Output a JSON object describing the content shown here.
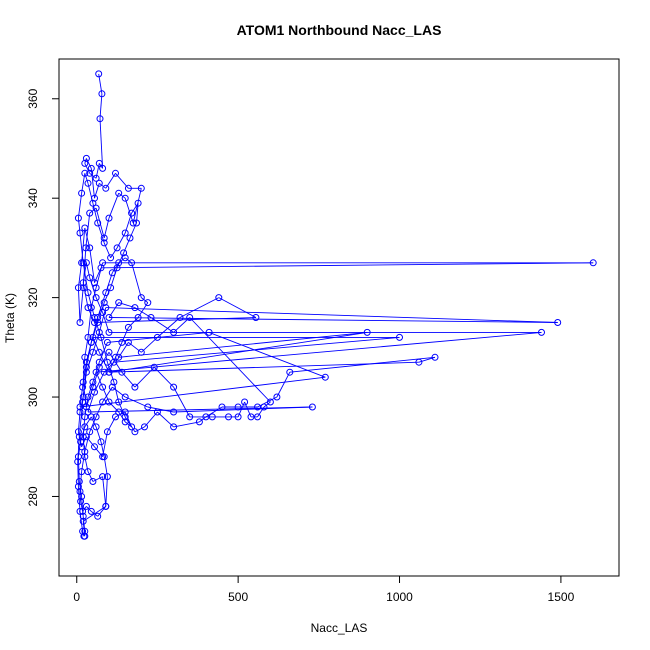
{
  "chart_data": {
    "type": "scatter",
    "title": "ATOM1 Northbound Nacc_LAS",
    "xlabel": "Nacc_LAS",
    "ylabel": "Theta (K)",
    "xlim": [
      -55,
      1680
    ],
    "ylim": [
      264,
      368
    ],
    "xticks": [
      0,
      500,
      1000,
      1500
    ],
    "yticks": [
      280,
      300,
      320,
      340,
      360
    ],
    "grid": false,
    "legend": "none",
    "series": [
      {
        "color": "#0000ff",
        "markers": "open-circle",
        "connected": true,
        "points": [
          [
            68,
            365
          ],
          [
            78,
            361
          ],
          [
            72,
            356
          ],
          [
            80,
            346
          ],
          [
            70,
            347
          ],
          [
            60,
            344
          ],
          [
            40,
            345
          ],
          [
            25,
            347
          ],
          [
            30,
            348
          ],
          [
            45,
            346
          ],
          [
            55,
            340
          ],
          [
            70,
            343
          ],
          [
            90,
            342
          ],
          [
            120,
            345
          ],
          [
            160,
            342
          ],
          [
            200,
            342
          ],
          [
            175,
            335
          ],
          [
            150,
            340
          ],
          [
            130,
            341
          ],
          [
            100,
            336
          ],
          [
            85,
            332
          ],
          [
            60,
            338
          ],
          [
            40,
            337
          ],
          [
            28,
            330
          ],
          [
            20,
            322
          ],
          [
            10,
            315
          ],
          [
            5,
            322
          ],
          [
            15,
            327
          ],
          [
            25,
            334
          ],
          [
            40,
            330
          ],
          [
            55,
            323
          ],
          [
            75,
            326
          ],
          [
            1600,
            327
          ],
          [
            80,
            327
          ],
          [
            60,
            322
          ],
          [
            45,
            318
          ],
          [
            35,
            312
          ],
          [
            25,
            308
          ],
          [
            20,
            303
          ],
          [
            30,
            298
          ],
          [
            50,
            302
          ],
          [
            70,
            306
          ],
          [
            100,
            309
          ],
          [
            140,
            305
          ],
          [
            180,
            302
          ],
          [
            240,
            306
          ],
          [
            300,
            302
          ],
          [
            350,
            296
          ],
          [
            420,
            296
          ],
          [
            470,
            296
          ],
          [
            500,
            296
          ],
          [
            520,
            299
          ],
          [
            540,
            296
          ],
          [
            560,
            296
          ],
          [
            580,
            298
          ],
          [
            600,
            299
          ],
          [
            350,
            316
          ],
          [
            300,
            313
          ],
          [
            230,
            316
          ],
          [
            180,
            318
          ],
          [
            130,
            319
          ],
          [
            100,
            316
          ],
          [
            1490,
            315
          ],
          [
            90,
            318
          ],
          [
            70,
            313
          ],
          [
            50,
            309
          ],
          [
            30,
            305
          ],
          [
            20,
            300
          ],
          [
            10,
            297
          ],
          [
            5,
            293
          ],
          [
            15,
            290
          ],
          [
            30,
            292
          ],
          [
            55,
            290
          ],
          [
            80,
            288
          ],
          [
            95,
            293
          ],
          [
            120,
            296
          ],
          [
            150,
            297
          ],
          [
            170,
            294
          ],
          [
            150,
            295
          ],
          [
            130,
            297
          ],
          [
            100,
            299
          ],
          [
            80,
            302
          ],
          [
            60,
            305
          ],
          [
            1440,
            313
          ],
          [
            100,
            313
          ],
          [
            80,
            317
          ],
          [
            60,
            320
          ],
          [
            40,
            324
          ],
          [
            30,
            327
          ],
          [
            20,
            323
          ],
          [
            35,
            318
          ],
          [
            55,
            315
          ],
          [
            555,
            316
          ],
          [
            440,
            320
          ],
          [
            320,
            316
          ],
          [
            250,
            312
          ],
          [
            200,
            309
          ],
          [
            160,
            311
          ],
          [
            130,
            308
          ],
          [
            900,
            313
          ],
          [
            100,
            305
          ],
          [
            70,
            309
          ],
          [
            50,
            312
          ],
          [
            1000,
            312
          ],
          [
            115,
            307
          ],
          [
            85,
            305
          ],
          [
            55,
            301
          ],
          [
            35,
            297
          ],
          [
            730,
            298
          ],
          [
            300,
            297
          ],
          [
            220,
            298
          ],
          [
            150,
            300
          ],
          [
            110,
            302
          ],
          [
            80,
            299
          ],
          [
            60,
            296
          ],
          [
            40,
            293
          ],
          [
            25,
            289
          ],
          [
            15,
            285
          ],
          [
            10,
            281
          ],
          [
            12,
            279
          ],
          [
            18,
            277
          ],
          [
            30,
            278
          ],
          [
            45,
            277
          ],
          [
            65,
            276
          ],
          [
            90,
            278
          ],
          [
            95,
            284
          ],
          [
            85,
            288
          ],
          [
            75,
            291
          ],
          [
            60,
            294
          ],
          [
            45,
            296
          ],
          [
            25,
            294
          ],
          [
            12,
            291
          ],
          [
            5,
            288
          ],
          [
            8,
            283
          ],
          [
            15,
            280
          ],
          [
            20,
            276
          ],
          [
            25,
            273
          ],
          [
            22,
            272
          ],
          [
            18,
            273
          ],
          [
            10,
            277
          ],
          [
            5,
            282
          ],
          [
            3,
            287
          ],
          [
            8,
            292
          ],
          [
            18,
            299
          ],
          [
            30,
            306
          ],
          [
            45,
            311
          ],
          [
            65,
            316
          ],
          [
            90,
            321
          ],
          [
            110,
            325
          ],
          [
            130,
            327
          ],
          [
            150,
            328
          ],
          [
            170,
            327
          ],
          [
            200,
            320
          ],
          [
            220,
            319
          ],
          [
            190,
            316
          ],
          [
            160,
            314
          ],
          [
            140,
            311
          ],
          [
            120,
            308
          ],
          [
            100,
            305
          ],
          [
            1060,
            307
          ],
          [
            1110,
            308
          ],
          [
            660,
            305
          ],
          [
            620,
            300
          ],
          [
            560,
            298
          ],
          [
            500,
            298
          ],
          [
            450,
            298
          ],
          [
            400,
            296
          ],
          [
            380,
            295
          ],
          [
            300,
            294
          ],
          [
            250,
            297
          ],
          [
            210,
            294
          ],
          [
            180,
            293
          ],
          [
            150,
            296
          ],
          [
            130,
            299
          ],
          [
            115,
            303
          ],
          [
            95,
            307
          ],
          [
            75,
            312
          ],
          [
            55,
            316
          ],
          [
            35,
            321
          ],
          [
            20,
            327
          ],
          [
            10,
            333
          ],
          [
            5,
            336
          ],
          [
            15,
            341
          ],
          [
            25,
            345
          ],
          [
            35,
            343
          ],
          [
            50,
            339
          ],
          [
            65,
            335
          ],
          [
            85,
            331
          ],
          [
            105,
            328
          ],
          [
            125,
            330
          ],
          [
            150,
            333
          ],
          [
            170,
            337
          ],
          [
            190,
            339
          ],
          [
            185,
            335
          ],
          [
            165,
            332
          ],
          [
            145,
            329
          ],
          [
            125,
            326
          ],
          [
            105,
            322
          ],
          [
            85,
            319
          ],
          [
            65,
            315
          ],
          [
            45,
            311
          ],
          [
            30,
            307
          ],
          [
            18,
            302
          ],
          [
            10,
            298
          ],
          [
            770,
            304
          ],
          [
            410,
            313
          ],
          [
            95,
            311
          ],
          [
            70,
            307
          ],
          [
            50,
            303
          ],
          [
            35,
            300
          ],
          [
            25,
            296
          ],
          [
            20,
            292
          ],
          [
            25,
            288
          ],
          [
            35,
            285
          ],
          [
            50,
            283
          ],
          [
            80,
            284
          ],
          [
            90,
            278
          ],
          [
            20,
            275
          ],
          [
            25,
            272
          ]
        ]
      }
    ]
  }
}
